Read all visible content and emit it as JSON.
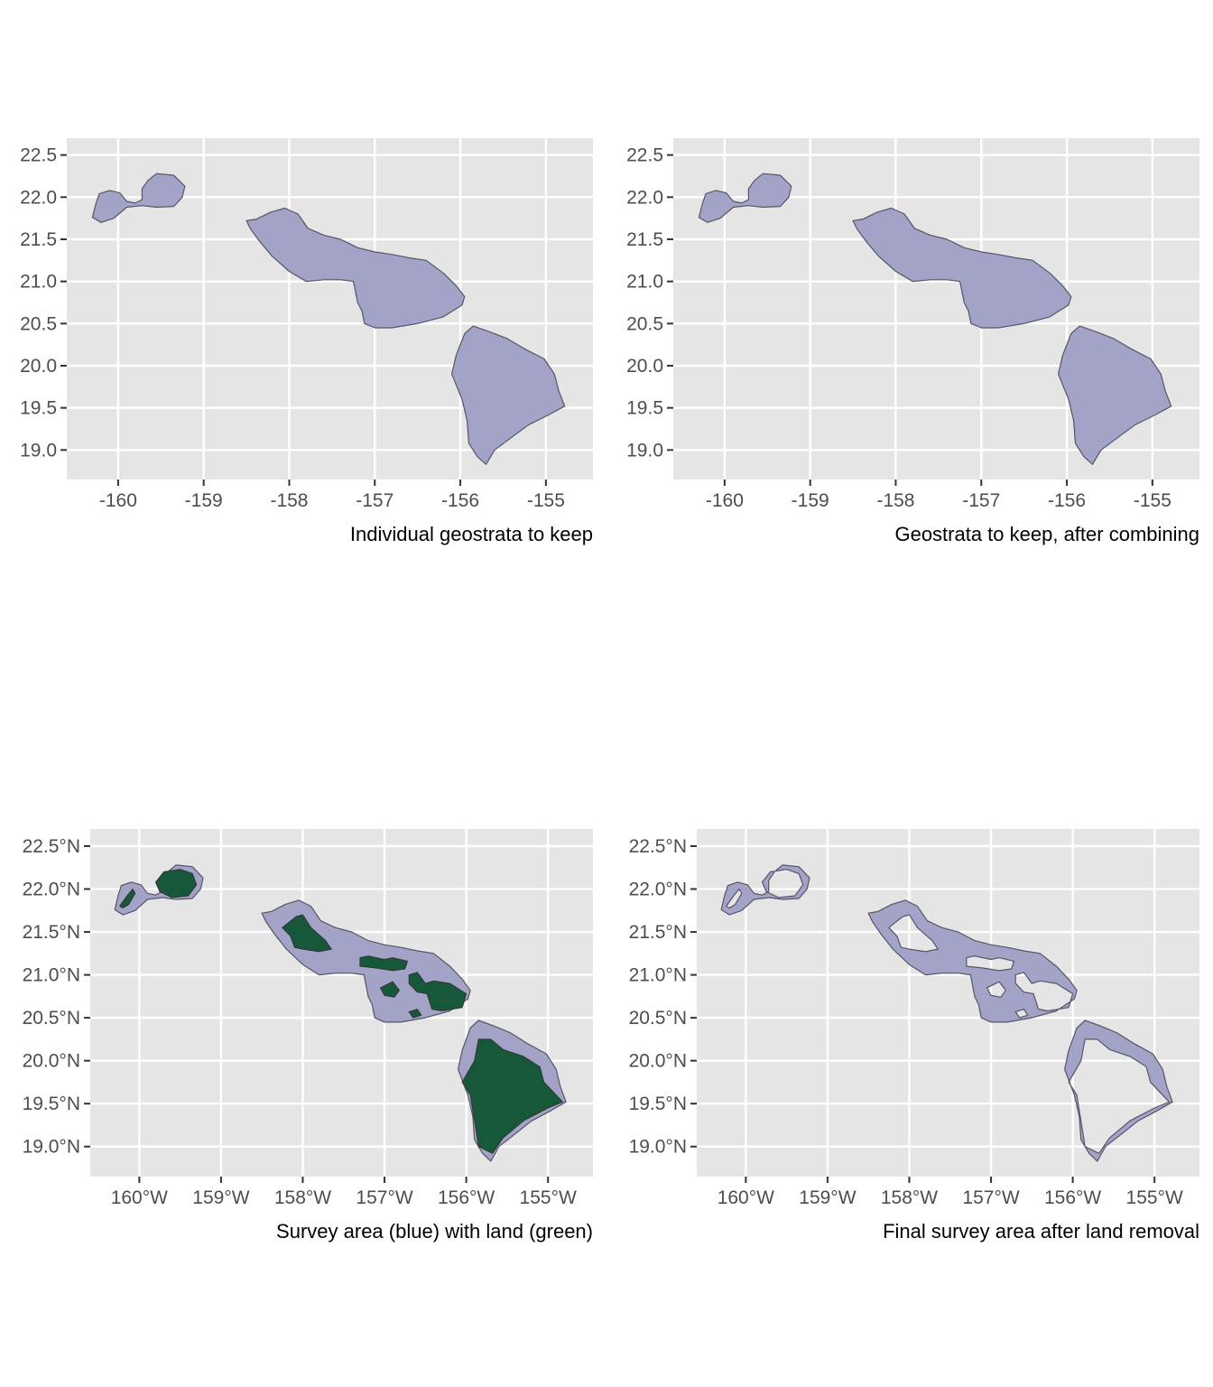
{
  "figure": {
    "panels": [
      {
        "id": "panel-1",
        "caption": "Individual geostrata to keep",
        "x_ticks": [
          "-160",
          "-159",
          "-158",
          "-157",
          "-156",
          "-155"
        ],
        "y_ticks": [
          "22.5",
          "22.0",
          "21.5",
          "21.0",
          "20.5",
          "20.0",
          "19.5",
          "19.0"
        ],
        "layers": [
          "survey_area"
        ]
      },
      {
        "id": "panel-2",
        "caption": "Geostrata to keep, after combining",
        "x_ticks": [
          "-160",
          "-159",
          "-158",
          "-157",
          "-156",
          "-155"
        ],
        "y_ticks": [
          "22.5",
          "22.0",
          "21.5",
          "21.0",
          "20.5",
          "20.0",
          "19.5",
          "19.0"
        ],
        "layers": [
          "survey_area"
        ]
      },
      {
        "id": "panel-3",
        "caption": "Survey area (blue) with land (green)",
        "x_ticks": [
          "160°W",
          "159°W",
          "158°W",
          "157°W",
          "156°W",
          "155°W"
        ],
        "y_ticks": [
          "22.5°N",
          "22.0°N",
          "21.5°N",
          "21.0°N",
          "20.5°N",
          "20.0°N",
          "19.5°N",
          "19.0°N"
        ],
        "layers": [
          "survey_area",
          "land"
        ]
      },
      {
        "id": "panel-4",
        "caption": "Final survey area after land removal",
        "x_ticks": [
          "160°W",
          "159°W",
          "158°W",
          "157°W",
          "156°W",
          "155°W"
        ],
        "y_ticks": [
          "22.5°N",
          "22.0°N",
          "21.5°N",
          "21.0°N",
          "20.5°N",
          "20.0°N",
          "19.5°N",
          "19.0°N"
        ],
        "layers": [
          "survey_area_minus_land"
        ]
      }
    ],
    "map_extent": {
      "lon_range": [
        -160.6,
        -154.45
      ],
      "lat_range": [
        18.65,
        22.7
      ]
    },
    "colors": {
      "panel_background": "#e5e5e5",
      "grid": "#ffffff",
      "survey_area_fill": "#a3a3c8",
      "land_fill": "#17573a",
      "outline": "#555566",
      "tick_label": "#4d4d4d",
      "caption": "#000000"
    },
    "geometry_units": "lon_lat_degrees",
    "survey_regions": {
      "kauai_niihau": [
        [
          -160.3,
          21.76
        ],
        [
          -160.26,
          21.92
        ],
        [
          -160.22,
          22.04
        ],
        [
          -160.1,
          22.08
        ],
        [
          -159.98,
          22.05
        ],
        [
          -159.9,
          21.95
        ],
        [
          -159.8,
          21.93
        ],
        [
          -159.72,
          21.97
        ],
        [
          -159.72,
          22.1
        ],
        [
          -159.65,
          22.2
        ],
        [
          -159.55,
          22.28
        ],
        [
          -159.35,
          22.26
        ],
        [
          -159.22,
          22.13
        ],
        [
          -159.25,
          22.0
        ],
        [
          -159.35,
          21.89
        ],
        [
          -159.55,
          21.88
        ],
        [
          -159.72,
          21.9
        ],
        [
          -159.9,
          21.88
        ],
        [
          -160.05,
          21.75
        ],
        [
          -160.2,
          21.7
        ],
        [
          -160.3,
          21.76
        ]
      ],
      "maui_nui_oahu": [
        [
          -158.5,
          21.72
        ],
        [
          -158.38,
          21.74
        ],
        [
          -158.22,
          21.82
        ],
        [
          -158.05,
          21.87
        ],
        [
          -157.9,
          21.8
        ],
        [
          -157.78,
          21.63
        ],
        [
          -157.6,
          21.55
        ],
        [
          -157.4,
          21.5
        ],
        [
          -157.2,
          21.4
        ],
        [
          -157.0,
          21.35
        ],
        [
          -156.8,
          21.32
        ],
        [
          -156.6,
          21.28
        ],
        [
          -156.4,
          21.25
        ],
        [
          -156.2,
          21.1
        ],
        [
          -156.05,
          20.95
        ],
        [
          -155.95,
          20.82
        ],
        [
          -155.98,
          20.72
        ],
        [
          -156.2,
          20.58
        ],
        [
          -156.5,
          20.5
        ],
        [
          -156.8,
          20.45
        ],
        [
          -157.0,
          20.45
        ],
        [
          -157.12,
          20.5
        ],
        [
          -157.15,
          20.65
        ],
        [
          -157.2,
          20.75
        ],
        [
          -157.25,
          21.0
        ],
        [
          -157.4,
          21.02
        ],
        [
          -157.6,
          21.02
        ],
        [
          -157.8,
          21.0
        ],
        [
          -158.0,
          21.12
        ],
        [
          -158.2,
          21.3
        ],
        [
          -158.35,
          21.48
        ],
        [
          -158.45,
          21.62
        ],
        [
          -158.5,
          21.72
        ]
      ],
      "big_island": [
        [
          -156.05,
          20.12
        ],
        [
          -155.95,
          20.38
        ],
        [
          -155.85,
          20.47
        ],
        [
          -155.65,
          20.4
        ],
        [
          -155.45,
          20.32
        ],
        [
          -155.25,
          20.2
        ],
        [
          -155.02,
          20.08
        ],
        [
          -154.9,
          19.9
        ],
        [
          -154.85,
          19.7
        ],
        [
          -154.78,
          19.52
        ],
        [
          -155.0,
          19.4
        ],
        [
          -155.2,
          19.3
        ],
        [
          -155.4,
          19.15
        ],
        [
          -155.6,
          19.0
        ],
        [
          -155.7,
          18.83
        ],
        [
          -155.8,
          18.92
        ],
        [
          -155.9,
          19.08
        ],
        [
          -155.92,
          19.35
        ],
        [
          -155.98,
          19.6
        ],
        [
          -156.1,
          19.9
        ],
        [
          -156.05,
          20.12
        ]
      ]
    },
    "land_regions": {
      "niihau": [
        [
          -160.24,
          21.8
        ],
        [
          -160.15,
          21.92
        ],
        [
          -160.08,
          22.0
        ],
        [
          -160.05,
          21.95
        ],
        [
          -160.13,
          21.82
        ],
        [
          -160.2,
          21.78
        ],
        [
          -160.24,
          21.8
        ]
      ],
      "kauai": [
        [
          -159.8,
          22.08
        ],
        [
          -159.7,
          22.2
        ],
        [
          -159.5,
          22.23
        ],
        [
          -159.35,
          22.18
        ],
        [
          -159.3,
          22.05
        ],
        [
          -159.4,
          21.92
        ],
        [
          -159.6,
          21.9
        ],
        [
          -159.75,
          21.97
        ],
        [
          -159.8,
          22.08
        ]
      ],
      "oahu": [
        [
          -158.25,
          21.55
        ],
        [
          -158.08,
          21.68
        ],
        [
          -158.0,
          21.7
        ],
        [
          -157.9,
          21.55
        ],
        [
          -157.72,
          21.4
        ],
        [
          -157.65,
          21.3
        ],
        [
          -157.8,
          21.27
        ],
        [
          -158.0,
          21.3
        ],
        [
          -158.1,
          21.32
        ],
        [
          -158.15,
          21.45
        ],
        [
          -158.25,
          21.55
        ]
      ],
      "molokai": [
        [
          -157.3,
          21.2
        ],
        [
          -157.2,
          21.22
        ],
        [
          -157.0,
          21.18
        ],
        [
          -156.9,
          21.2
        ],
        [
          -156.72,
          21.16
        ],
        [
          -156.75,
          21.07
        ],
        [
          -156.9,
          21.05
        ],
        [
          -157.1,
          21.08
        ],
        [
          -157.3,
          21.1
        ],
        [
          -157.3,
          21.2
        ]
      ],
      "lanai": [
        [
          -157.05,
          20.85
        ],
        [
          -156.9,
          20.92
        ],
        [
          -156.82,
          20.82
        ],
        [
          -156.88,
          20.74
        ],
        [
          -157.0,
          20.76
        ],
        [
          -157.05,
          20.85
        ]
      ],
      "maui": [
        [
          -156.7,
          21.0
        ],
        [
          -156.6,
          21.03
        ],
        [
          -156.5,
          20.9
        ],
        [
          -156.4,
          20.93
        ],
        [
          -156.2,
          20.9
        ],
        [
          -156.0,
          20.78
        ],
        [
          -156.05,
          20.62
        ],
        [
          -156.3,
          20.58
        ],
        [
          -156.42,
          20.6
        ],
        [
          -156.48,
          20.78
        ],
        [
          -156.6,
          20.8
        ],
        [
          -156.7,
          20.9
        ],
        [
          -156.7,
          21.0
        ]
      ],
      "kahoolawe": [
        [
          -156.7,
          20.57
        ],
        [
          -156.6,
          20.6
        ],
        [
          -156.55,
          20.53
        ],
        [
          -156.65,
          20.5
        ],
        [
          -156.7,
          20.57
        ]
      ],
      "hawaii": [
        [
          -155.85,
          20.25
        ],
        [
          -155.7,
          20.25
        ],
        [
          -155.55,
          20.13
        ],
        [
          -155.3,
          20.05
        ],
        [
          -155.1,
          19.93
        ],
        [
          -155.05,
          19.75
        ],
        [
          -154.82,
          19.52
        ],
        [
          -155.0,
          19.45
        ],
        [
          -155.3,
          19.3
        ],
        [
          -155.55,
          19.1
        ],
        [
          -155.68,
          18.92
        ],
        [
          -155.85,
          19.0
        ],
        [
          -155.9,
          19.3
        ],
        [
          -155.95,
          19.6
        ],
        [
          -156.05,
          19.75
        ],
        [
          -155.9,
          20.0
        ],
        [
          -155.85,
          20.25
        ]
      ]
    }
  }
}
